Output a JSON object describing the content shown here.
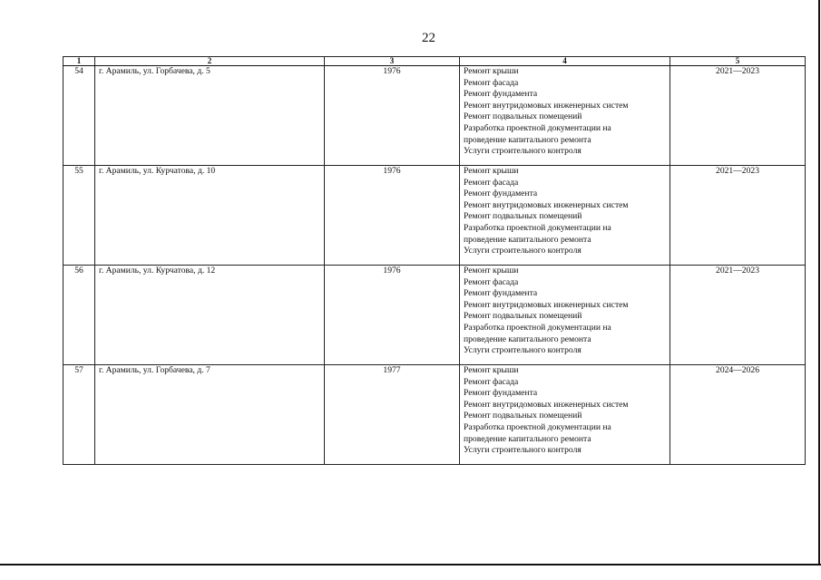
{
  "page_number": "22",
  "table": {
    "headers": [
      "1",
      "2",
      "3",
      "4",
      "5"
    ],
    "rows": [
      {
        "num": "54",
        "address": "г. Арамиль, ул. Горбачева, д. 5",
        "year": "1976",
        "works": [
          "Ремонт крыши",
          "Ремонт фасада",
          "Ремонт фундамента",
          "Ремонт внутридомовых инженерных систем",
          "Ремонт подвальных помещений",
          "Разработка проектной документации на",
          "проведение капитального ремонта",
          "Услуги строительного контроля"
        ],
        "period": "2021—2023"
      },
      {
        "num": "55",
        "address": "г. Арамиль, ул. Курчатова, д. 10",
        "year": "1976",
        "works": [
          "Ремонт крыши",
          "Ремонт фасада",
          "Ремонт фундамента",
          "Ремонт внутридомовых инженерных систем",
          "Ремонт подвальных помещений",
          "Разработка проектной документации на",
          "проведение капитального ремонта",
          "Услуги строительного контроля"
        ],
        "period": "2021—2023"
      },
      {
        "num": "56",
        "address": "г. Арамиль, ул. Курчатова, д. 12",
        "year": "1976",
        "works": [
          "Ремонт крыши",
          "Ремонт фасада",
          "Ремонт фундамента",
          "Ремонт внутридомовых инженерных систем",
          "Ремонт подвальных помещений",
          "Разработка проектной документации на",
          "проведение капитального ремонта",
          "Услуги строительного контроля"
        ],
        "period": "2021—2023"
      },
      {
        "num": "57",
        "address": "г. Арамиль, ул. Горбачева, д. 7",
        "year": "1977",
        "works": [
          "Ремонт крыши",
          "Ремонт фасада",
          "Ремонт фундамента",
          "Ремонт внутридомовых инженерных систем",
          "Ремонт подвальных помещений",
          "Разработка проектной документации на",
          "проведение капитального ремонта",
          "Услуги строительного контроля"
        ],
        "period": "2024—2026"
      }
    ]
  }
}
